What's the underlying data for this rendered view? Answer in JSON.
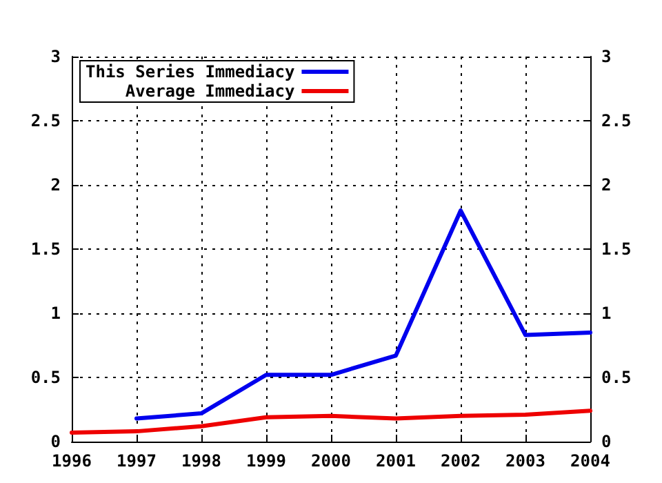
{
  "chart_data": {
    "type": "line",
    "x": [
      1996,
      1997,
      1998,
      1999,
      2000,
      2001,
      2002,
      2003,
      2004
    ],
    "series": [
      {
        "name": "This Series Immediacy",
        "color": "#0000ee",
        "values": [
          null,
          0.18,
          0.22,
          0.52,
          0.52,
          0.67,
          1.8,
          0.83,
          0.85
        ]
      },
      {
        "name": "Average Immediacy",
        "color": "#ee0000",
        "values": [
          0.07,
          0.08,
          0.12,
          0.19,
          0.2,
          0.18,
          0.2,
          0.21,
          0.24
        ]
      }
    ],
    "xlim": [
      1996,
      2004
    ],
    "xticks": [
      1996,
      1997,
      1998,
      1999,
      2000,
      2001,
      2002,
      2003,
      2004
    ],
    "ylim": [
      0,
      3
    ],
    "yticks": [
      0,
      0.5,
      1,
      1.5,
      2,
      2.5,
      3
    ],
    "y2lim": [
      0,
      3
    ],
    "y2ticks": [
      0,
      0.5,
      1,
      1.5,
      2,
      2.5,
      3
    ],
    "grid": true,
    "legend": "top left",
    "line_style": "solid",
    "marker": "none"
  }
}
